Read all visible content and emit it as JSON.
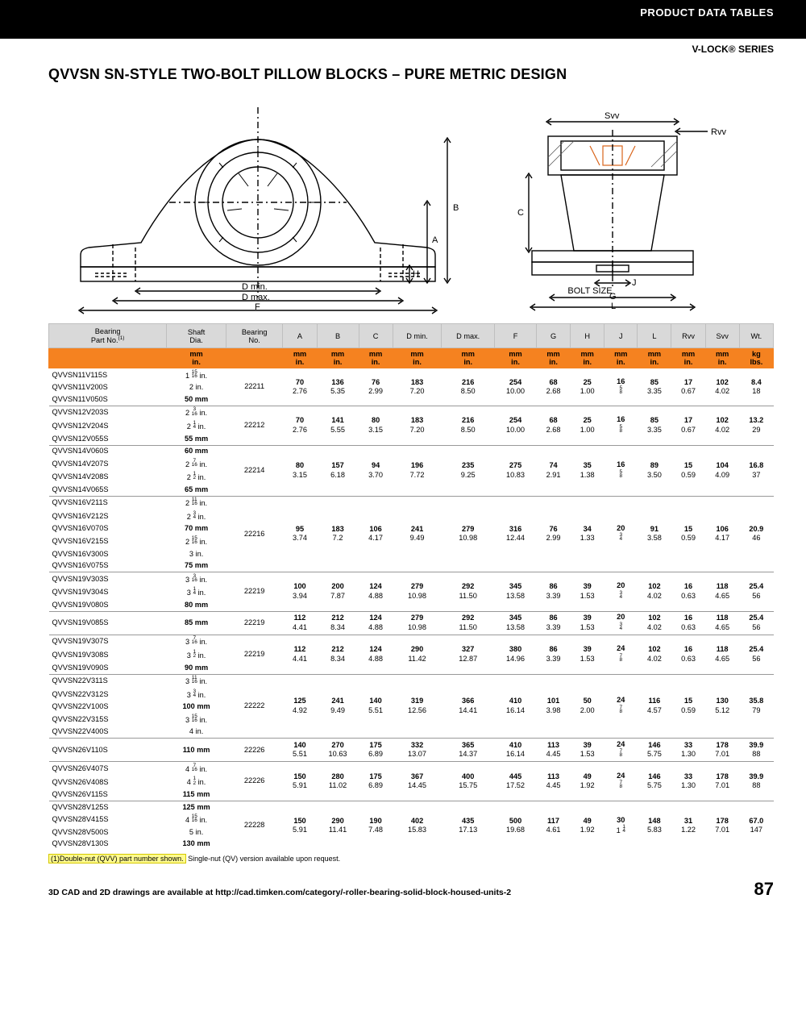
{
  "header": {
    "section": "PRODUCT DATA TABLES",
    "series": "V-LOCK® SERIES"
  },
  "title": "QVVSN SN-STYLE TWO-BOLT PILLOW BLOCKS – PURE METRIC DESIGN",
  "diagram": {
    "left_labels": {
      "D_min": "D min.",
      "D_max": "D max.",
      "F": "F",
      "A": "A",
      "B": "B",
      "H": "H"
    },
    "right_labels": {
      "Svv": "Svv",
      "Rvv": "Rvv",
      "C": "C",
      "J": "J",
      "bolt": "BOLT SIZE",
      "G": "G",
      "L": "L"
    },
    "colors": {
      "line": "#000000",
      "fill": "#ffffff",
      "hatch": "#666666"
    }
  },
  "table": {
    "columns_row1": [
      "Bearing\nPart No.(1)",
      "Shaft\nDia.",
      "Bearing\nNo.",
      "A",
      "B",
      "C",
      "D min.",
      "D max.",
      "F",
      "G",
      "H",
      "J",
      "L",
      "Rvv",
      "Svv",
      "Wt."
    ],
    "columns_row2": [
      "",
      "mm\nin.",
      "",
      "mm\nin.",
      "mm\nin.",
      "mm\nin.",
      "mm\nin.",
      "mm\nin.",
      "mm\nin.",
      "mm\nin.",
      "mm\nin.",
      "mm\nin.",
      "mm\nin.",
      "mm\nin.",
      "mm\nin.",
      "kg\nlbs."
    ],
    "groups": [
      {
        "parts": [
          {
            "pn": "QVVSN11V115S",
            "shaft": "1 15/16 in."
          },
          {
            "pn": "QVVSN11V200S",
            "shaft": "2 in."
          },
          {
            "pn": "QVVSN11V050S",
            "shaft": "50 mm",
            "mm": true
          }
        ],
        "bn": "22211",
        "vals": [
          [
            "70",
            "2.76"
          ],
          [
            "136",
            "5.35"
          ],
          [
            "76",
            "2.99"
          ],
          [
            "183",
            "7.20"
          ],
          [
            "216",
            "8.50"
          ],
          [
            "254",
            "10.00"
          ],
          [
            "68",
            "2.68"
          ],
          [
            "25",
            "1.00"
          ],
          [
            "16",
            "5/8"
          ],
          [
            "85",
            "3.35"
          ],
          [
            "17",
            "0.67"
          ],
          [
            "102",
            "4.02"
          ],
          [
            "8.4",
            "18"
          ]
        ]
      },
      {
        "parts": [
          {
            "pn": "QVVSN12V203S",
            "shaft": "2 3/16 in."
          },
          {
            "pn": "QVVSN12V204S",
            "shaft": "2 1/4 in."
          },
          {
            "pn": "QVVSN12V055S",
            "shaft": "55 mm",
            "mm": true
          }
        ],
        "bn": "22212",
        "vals": [
          [
            "70",
            "2.76"
          ],
          [
            "141",
            "5.55"
          ],
          [
            "80",
            "3.15"
          ],
          [
            "183",
            "7.20"
          ],
          [
            "216",
            "8.50"
          ],
          [
            "254",
            "10.00"
          ],
          [
            "68",
            "2.68"
          ],
          [
            "25",
            "1.00"
          ],
          [
            "16",
            "5/8"
          ],
          [
            "85",
            "3.35"
          ],
          [
            "17",
            "0.67"
          ],
          [
            "102",
            "4.02"
          ],
          [
            "13.2",
            "29"
          ]
        ]
      },
      {
        "parts": [
          {
            "pn": "QVVSN14V060S",
            "shaft": "60 mm",
            "mm": true
          },
          {
            "pn": "QVVSN14V207S",
            "shaft": "2 7/16 in."
          },
          {
            "pn": "QVVSN14V208S",
            "shaft": "2 1/2 in."
          },
          {
            "pn": "QVVSN14V065S",
            "shaft": "65 mm",
            "mm": true
          }
        ],
        "bn": "22214",
        "vals": [
          [
            "80",
            "3.15"
          ],
          [
            "157",
            "6.18"
          ],
          [
            "94",
            "3.70"
          ],
          [
            "196",
            "7.72"
          ],
          [
            "235",
            "9.25"
          ],
          [
            "275",
            "10.83"
          ],
          [
            "74",
            "2.91"
          ],
          [
            "35",
            "1.38"
          ],
          [
            "16",
            "5/8"
          ],
          [
            "89",
            "3.50"
          ],
          [
            "15",
            "0.59"
          ],
          [
            "104",
            "4.09"
          ],
          [
            "16.8",
            "37"
          ]
        ]
      },
      {
        "parts": [
          {
            "pn": "QVVSN16V211S",
            "shaft": "2 11/16 in."
          },
          {
            "pn": "QVVSN16V212S",
            "shaft": "2 3/4 in."
          },
          {
            "pn": "QVVSN16V070S",
            "shaft": "70 mm",
            "mm": true
          },
          {
            "pn": "QVVSN16V215S",
            "shaft": "2 15/16 in."
          },
          {
            "pn": "QVVSN16V300S",
            "shaft": "3 in."
          },
          {
            "pn": "QVVSN16V075S",
            "shaft": "75 mm",
            "mm": true
          }
        ],
        "bn": "22216",
        "vals": [
          [
            "95",
            "3.74"
          ],
          [
            "183",
            "7.2"
          ],
          [
            "106",
            "4.17"
          ],
          [
            "241",
            "9.49"
          ],
          [
            "279",
            "10.98"
          ],
          [
            "316",
            "12.44"
          ],
          [
            "76",
            "2.99"
          ],
          [
            "34",
            "1.33"
          ],
          [
            "20",
            "3/4"
          ],
          [
            "91",
            "3.58"
          ],
          [
            "15",
            "0.59"
          ],
          [
            "106",
            "4.17"
          ],
          [
            "20.9",
            "46"
          ]
        ]
      },
      {
        "parts": [
          {
            "pn": "QVVSN19V303S",
            "shaft": "3 3/16 in."
          },
          {
            "pn": "QVVSN19V304S",
            "shaft": "3 1/4 in."
          },
          {
            "pn": "QVVSN19V080S",
            "shaft": "80 mm",
            "mm": true
          }
        ],
        "bn": "22219",
        "vals": [
          [
            "100",
            "3.94"
          ],
          [
            "200",
            "7.87"
          ],
          [
            "124",
            "4.88"
          ],
          [
            "279",
            "10.98"
          ],
          [
            "292",
            "11.50"
          ],
          [
            "345",
            "13.58"
          ],
          [
            "86",
            "3.39"
          ],
          [
            "39",
            "1.53"
          ],
          [
            "20",
            "3/4"
          ],
          [
            "102",
            "4.02"
          ],
          [
            "16",
            "0.63"
          ],
          [
            "118",
            "4.65"
          ],
          [
            "25.4",
            "56"
          ]
        ]
      },
      {
        "parts": [
          {
            "pn": "QVVSN19V085S",
            "shaft": "85 mm",
            "mm": true
          }
        ],
        "bn": "22219",
        "vals": [
          [
            "112",
            "4.41"
          ],
          [
            "212",
            "8.34"
          ],
          [
            "124",
            "4.88"
          ],
          [
            "279",
            "10.98"
          ],
          [
            "292",
            "11.50"
          ],
          [
            "345",
            "13.58"
          ],
          [
            "86",
            "3.39"
          ],
          [
            "39",
            "1.53"
          ],
          [
            "20",
            "3/4"
          ],
          [
            "102",
            "4.02"
          ],
          [
            "16",
            "0.63"
          ],
          [
            "118",
            "4.65"
          ],
          [
            "25.4",
            "56"
          ]
        ]
      },
      {
        "parts": [
          {
            "pn": "QVVSN19V307S",
            "shaft": "3 7/16 in."
          },
          {
            "pn": "QVVSN19V308S",
            "shaft": "3 1/2 in."
          },
          {
            "pn": "QVVSN19V090S",
            "shaft": "90 mm",
            "mm": true
          }
        ],
        "bn": "22219",
        "vals": [
          [
            "112",
            "4.41"
          ],
          [
            "212",
            "8.34"
          ],
          [
            "124",
            "4.88"
          ],
          [
            "290",
            "11.42"
          ],
          [
            "327",
            "12.87"
          ],
          [
            "380",
            "14.96"
          ],
          [
            "86",
            "3.39"
          ],
          [
            "39",
            "1.53"
          ],
          [
            "24",
            "7/8"
          ],
          [
            "102",
            "4.02"
          ],
          [
            "16",
            "0.63"
          ],
          [
            "118",
            "4.65"
          ],
          [
            "25.4",
            "56"
          ]
        ]
      },
      {
        "parts": [
          {
            "pn": "QVVSN22V311S",
            "shaft": "3 11/16 in."
          },
          {
            "pn": "QVVSN22V312S",
            "shaft": "3 3/4 in."
          },
          {
            "pn": "QVVSN22V100S",
            "shaft": "100 mm",
            "mm": true
          },
          {
            "pn": "QVVSN22V315S",
            "shaft": "3 15/16 in."
          },
          {
            "pn": "QVVSN22V400S",
            "shaft": "4 in."
          }
        ],
        "bn": "22222",
        "vals": [
          [
            "125",
            "4.92"
          ],
          [
            "241",
            "9.49"
          ],
          [
            "140",
            "5.51"
          ],
          [
            "319",
            "12.56"
          ],
          [
            "366",
            "14.41"
          ],
          [
            "410",
            "16.14"
          ],
          [
            "101",
            "3.98"
          ],
          [
            "50",
            "2.00"
          ],
          [
            "24",
            "7/8"
          ],
          [
            "116",
            "4.57"
          ],
          [
            "15",
            "0.59"
          ],
          [
            "130",
            "5.12"
          ],
          [
            "35.8",
            "79"
          ]
        ]
      },
      {
        "parts": [
          {
            "pn": "QVVSN26V110S",
            "shaft": "110 mm",
            "mm": true
          }
        ],
        "bn": "22226",
        "vals": [
          [
            "140",
            "5.51"
          ],
          [
            "270",
            "10.63"
          ],
          [
            "175",
            "6.89"
          ],
          [
            "332",
            "13.07"
          ],
          [
            "365",
            "14.37"
          ],
          [
            "410",
            "16.14"
          ],
          [
            "113",
            "4.45"
          ],
          [
            "39",
            "1.53"
          ],
          [
            "24",
            "7/8"
          ],
          [
            "146",
            "5.75"
          ],
          [
            "33",
            "1.30"
          ],
          [
            "178",
            "7.01"
          ],
          [
            "39.9",
            "88"
          ]
        ]
      },
      {
        "parts": [
          {
            "pn": "QVVSN26V407S",
            "shaft": "4 7/16 in."
          },
          {
            "pn": "QVVSN26V408S",
            "shaft": "4 1/2 in."
          },
          {
            "pn": "QVVSN26V115S",
            "shaft": "115 mm",
            "mm": true
          }
        ],
        "bn": "22226",
        "vals": [
          [
            "150",
            "5.91"
          ],
          [
            "280",
            "11.02"
          ],
          [
            "175",
            "6.89"
          ],
          [
            "367",
            "14.45"
          ],
          [
            "400",
            "15.75"
          ],
          [
            "445",
            "17.52"
          ],
          [
            "113",
            "4.45"
          ],
          [
            "49",
            "1.92"
          ],
          [
            "24",
            "7/8"
          ],
          [
            "146",
            "5.75"
          ],
          [
            "33",
            "1.30"
          ],
          [
            "178",
            "7.01"
          ],
          [
            "39.9",
            "88"
          ]
        ]
      },
      {
        "parts": [
          {
            "pn": "QVVSN28V125S",
            "shaft": "125 mm",
            "mm": true
          },
          {
            "pn": "QVVSN28V415S",
            "shaft": "4 15/16 in."
          },
          {
            "pn": "QVVSN28V500S",
            "shaft": "5 in."
          },
          {
            "pn": "QVVSN28V130S",
            "shaft": "130 mm",
            "mm": true
          }
        ],
        "bn": "22228",
        "vals": [
          [
            "150",
            "5.91"
          ],
          [
            "290",
            "11.41"
          ],
          [
            "190",
            "7.48"
          ],
          [
            "402",
            "15.83"
          ],
          [
            "435",
            "17.13"
          ],
          [
            "500",
            "19.68"
          ],
          [
            "117",
            "4.61"
          ],
          [
            "49",
            "1.92"
          ],
          [
            "30",
            "1 1/4"
          ],
          [
            "148",
            "5.83"
          ],
          [
            "31",
            "1.22"
          ],
          [
            "178",
            "7.01"
          ],
          [
            "67.0",
            "147"
          ]
        ]
      }
    ]
  },
  "footnote_hl": "(1)Double-nut (QVV) part number shown.",
  "footnote_rest": " Single-nut (QV) version available upon request.",
  "footer": {
    "cad": "3D CAD and 2D drawings are available at http://cad.timken.com/category/-roller-bearing-solid-block-housed-units-2",
    "page": "87"
  }
}
